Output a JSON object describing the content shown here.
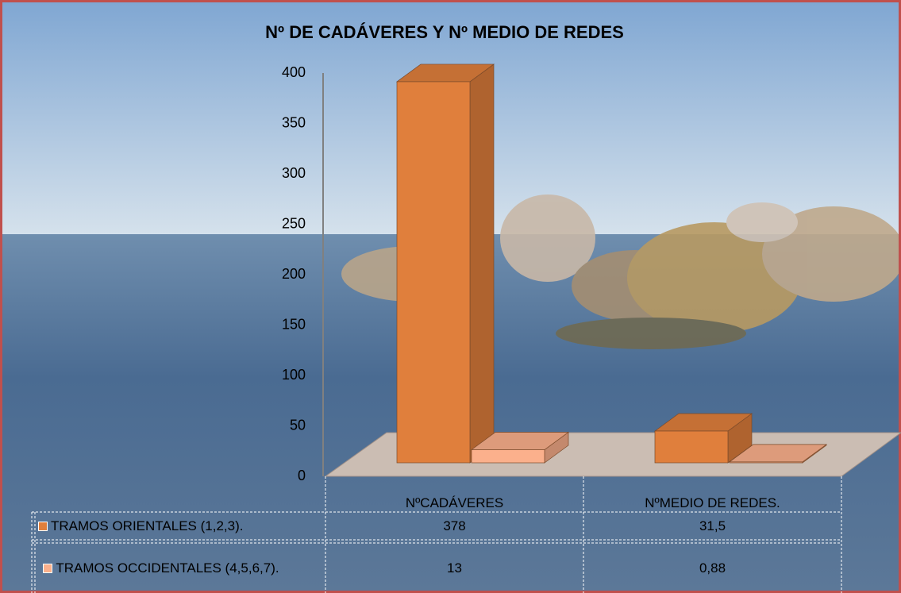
{
  "chart_data": {
    "type": "bar3d",
    "title": "Nº DE CADÁVERES  Y Nº MEDIO DE REDES",
    "categories": [
      "NºCADÁVERES",
      "NºMEDIO DE REDES."
    ],
    "series": [
      {
        "name": "TRAMOS ORIENTALES (1,2,3).",
        "color": "#e07f3c",
        "values": [
          378,
          31.5
        ],
        "value_labels": [
          "378",
          "31,5"
        ]
      },
      {
        "name": "TRAMOS OCCIDENTALES (4,5,6,7).",
        "color": "#fbb08c",
        "values": [
          13,
          0.88
        ],
        "value_labels": [
          "13",
          "0,88"
        ]
      }
    ],
    "ylim": [
      0,
      400
    ],
    "yticks": [
      0,
      50,
      100,
      150,
      200,
      250,
      300,
      350,
      400
    ],
    "grid": false
  }
}
